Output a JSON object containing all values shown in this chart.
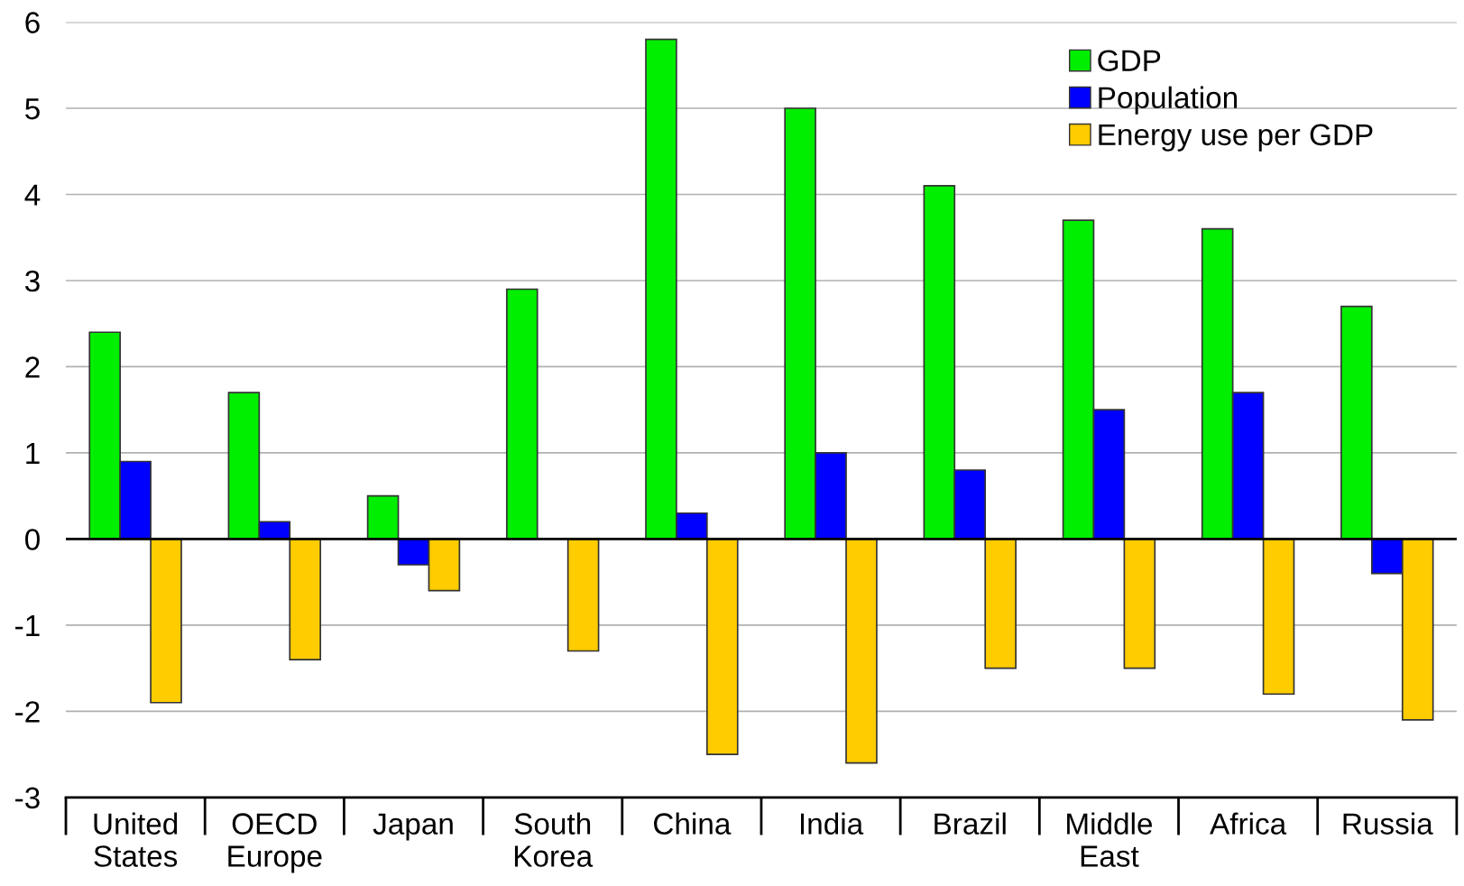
{
  "chart_data": {
    "type": "bar",
    "categories": [
      "United\nStates",
      "OECD\nEurope",
      "Japan",
      "South\nKorea",
      "China",
      "India",
      "Brazil",
      "Middle\nEast",
      "Africa",
      "Russia"
    ],
    "series": [
      {
        "name": "GDP",
        "color": "#00ee00",
        "values": [
          2.4,
          1.7,
          0.5,
          2.9,
          5.8,
          5.0,
          4.1,
          3.7,
          3.6,
          2.7
        ]
      },
      {
        "name": "Population",
        "color": "#0000ff",
        "values": [
          0.9,
          0.2,
          -0.3,
          null,
          0.3,
          1.0,
          0.8,
          1.5,
          1.7,
          -0.4
        ]
      },
      {
        "name": "Energy use per GDP",
        "color": "#ffcc00",
        "values": [
          -1.9,
          -1.4,
          -0.6,
          -1.3,
          -2.5,
          -2.6,
          -1.5,
          -1.5,
          -1.8,
          -2.1
        ]
      }
    ],
    "ylim": [
      -3,
      6
    ],
    "yticks": [
      -3,
      -2,
      -1,
      0,
      1,
      2,
      3,
      4,
      5,
      6
    ],
    "grid": "y",
    "legend": "top right"
  }
}
